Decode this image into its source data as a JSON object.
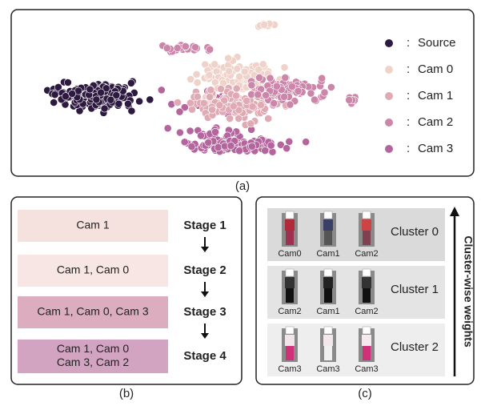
{
  "panel_a": {
    "legend": [
      {
        "label": "Source",
        "color": "#2e1a40"
      },
      {
        "label": "Cam 0",
        "color": "#efd3ca"
      },
      {
        "label": "Cam 1",
        "color": "#e0aab5"
      },
      {
        "label": "Cam 2",
        "color": "#cc86aa"
      },
      {
        "label": "Cam 3",
        "color": "#b4659d"
      }
    ],
    "separator": ":",
    "caption": "(a)"
  },
  "panel_b": {
    "rows": [
      {
        "cams": [
          "Cam 1"
        ],
        "stage": "Stage 1",
        "color": "#f5e1de"
      },
      {
        "cams": [
          "Cam 1, Cam 0"
        ],
        "stage": "Stage 2",
        "color": "#f7e6e3"
      },
      {
        "cams": [
          "Cam 1, Cam 0, Cam 3"
        ],
        "stage": "Stage 3",
        "color": "#dcadbf"
      },
      {
        "cams": [
          "Cam 1, Cam 0",
          "Cam 3, Cam 2"
        ],
        "stage": "Stage 4",
        "color": "#d3a4c2"
      }
    ],
    "caption": "(b)"
  },
  "panel_c": {
    "clusters": [
      {
        "label": "Cluster 0",
        "cams": [
          "Cam0",
          "Cam1",
          "Cam2"
        ],
        "color": "#dadada"
      },
      {
        "label": "Cluster 1",
        "cams": [
          "Cam2",
          "Cam1",
          "Cam2"
        ],
        "color": "#e4e4e4"
      },
      {
        "label": "Cluster 2",
        "cams": [
          "Cam3",
          "Cam3",
          "Cam3"
        ],
        "color": "#eeeeee"
      }
    ],
    "axis_label": "Cluster-wise weights",
    "caption": "(c)"
  }
}
